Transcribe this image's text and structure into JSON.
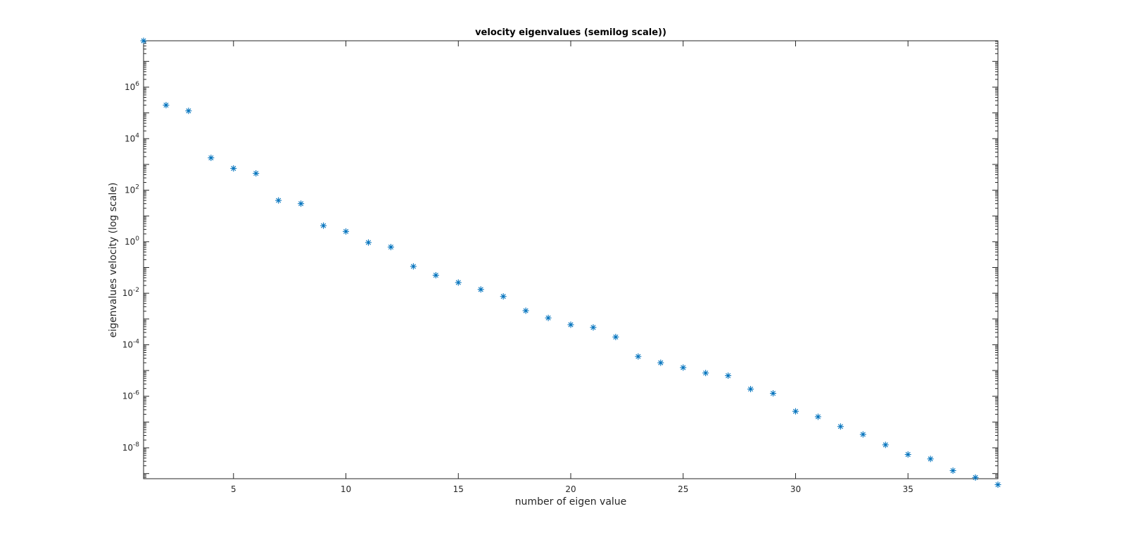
{
  "chart_data": {
    "type": "scatter",
    "title": "velocity eigenvalues (semilog scale))",
    "xlabel": "number of eigen value",
    "ylabel": "eigenvalues velocity (log scale)",
    "xlim": [
      1,
      39
    ],
    "ylim_log10": [
      -9.2,
      7.8
    ],
    "y_scale": "log",
    "x_ticks": [
      5,
      10,
      15,
      20,
      25,
      30,
      35
    ],
    "x_tick_labels": [
      "5",
      "10",
      "15",
      "20",
      "25",
      "30",
      "35"
    ],
    "y_ticks_exponent": [
      6,
      4,
      2,
      0,
      -2,
      -4,
      -6,
      -8
    ],
    "y_tick_labels": [
      {
        "base": "10",
        "exp": "6"
      },
      {
        "base": "10",
        "exp": "4"
      },
      {
        "base": "10",
        "exp": "2"
      },
      {
        "base": "10",
        "exp": "0"
      },
      {
        "base": "10",
        "exp": "-2"
      },
      {
        "base": "10",
        "exp": "-4"
      },
      {
        "base": "10",
        "exp": "-6"
      },
      {
        "base": "10",
        "exp": "-8"
      }
    ],
    "grid": false,
    "marker": "asterisk",
    "marker_color": "#0072bd",
    "x": [
      1,
      2,
      3,
      4,
      5,
      6,
      7,
      8,
      9,
      10,
      11,
      12,
      13,
      14,
      15,
      16,
      17,
      18,
      19,
      20,
      21,
      22,
      23,
      24,
      25,
      26,
      27,
      28,
      29,
      30,
      31,
      32,
      33,
      34,
      35,
      36,
      37,
      38,
      39
    ],
    "values": [
      63000000,
      200000,
      120000,
      1800,
      700,
      450,
      40,
      30,
      4.2,
      2.5,
      0.93,
      0.62,
      0.11,
      0.05,
      0.026,
      0.014,
      0.0075,
      0.0021,
      0.0011,
      0.0006,
      0.00047,
      0.0002,
      3.5e-05,
      2e-05,
      1.3e-05,
      8e-06,
      6.3e-06,
      1.9e-06,
      1.3e-06,
      2.6e-07,
      1.6e-07,
      6.7e-08,
      3.3e-08,
      1.3e-08,
      5.5e-09,
      3.7e-09,
      1.3e-09,
      7e-10,
      3.7e-10
    ]
  }
}
